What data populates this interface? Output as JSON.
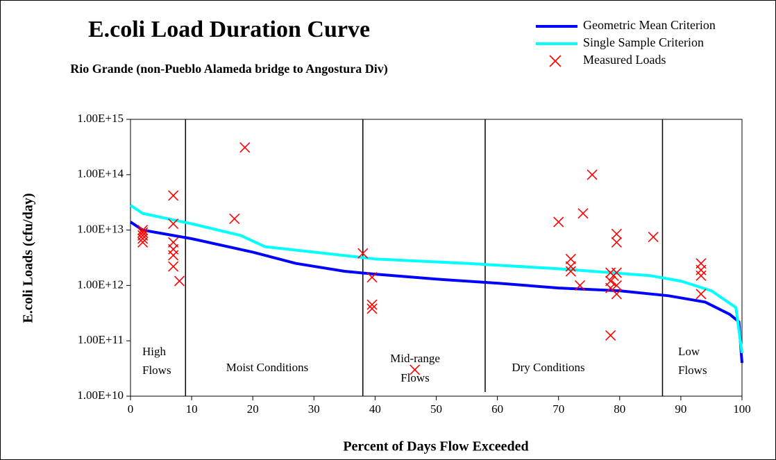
{
  "chart_data": {
    "type": "line",
    "title": "E.coli Load Duration Curve",
    "subtitle": "Rio Grande (non-Pueblo Alameda bridge to Angostura Div)",
    "x_label": "Percent of Days Flow Exceeded",
    "y_label": "E.coli Loads (cfu/day)",
    "log_y": true,
    "xlim": [
      0,
      100
    ],
    "xticks": [
      0,
      10,
      20,
      30,
      40,
      50,
      60,
      70,
      80,
      90,
      100
    ],
    "ylim": [
      10000000000.0,
      1000000000000000.0
    ],
    "yticks": [
      {
        "value": 10000000000.0,
        "label": "1.00E+10"
      },
      {
        "value": 100000000000.0,
        "label": "1.00E+11"
      },
      {
        "value": 1000000000000.0,
        "label": "1.00E+12"
      },
      {
        "value": 10000000000000.0,
        "label": "1.00E+13"
      },
      {
        "value": 100000000000000.0,
        "label": "1.00E+14"
      },
      {
        "value": 1000000000000000.0,
        "label": "1.00E+15"
      }
    ],
    "dividers": [
      9,
      38,
      58,
      87
    ],
    "regions": [
      [
        "High",
        "Flows"
      ],
      [
        "Moist Conditions"
      ],
      [
        "Mid-range",
        "Flows"
      ],
      [
        "Dry Conditions"
      ],
      [
        "Low",
        "Flows"
      ]
    ],
    "series": [
      {
        "name": "Geometric Mean Criterion",
        "color": "#0000ff",
        "type": "line",
        "x": [
          0,
          2,
          10,
          20,
          27,
          35,
          40,
          50,
          60,
          70,
          80,
          88,
          94,
          98,
          99.5,
          100
        ],
        "values": [
          14000000000000.0,
          10000000000000.0,
          7000000000000.0,
          4000000000000.0,
          2500000000000.0,
          1800000000000.0,
          1600000000000.0,
          1300000000000.0,
          1100000000000.0,
          900000000000.0,
          800000000000.0,
          650000000000.0,
          500000000000.0,
          300000000000.0,
          220000000000.0,
          40000000000.0
        ]
      },
      {
        "name": "Single Sample Criterion",
        "color": "#00ffff",
        "type": "line",
        "x": [
          0,
          2,
          10,
          18,
          22,
          30,
          40,
          55,
          70,
          85,
          90,
          95,
          99,
          100
        ],
        "values": [
          28000000000000.0,
          20000000000000.0,
          13000000000000.0,
          8000000000000.0,
          5000000000000.0,
          4000000000000.0,
          3000000000000.0,
          2500000000000.0,
          2000000000000.0,
          1500000000000.0,
          1200000000000.0,
          800000000000.0,
          400000000000.0,
          60000000000.0
        ]
      },
      {
        "name": "Measured Loads",
        "color": "#ff0000",
        "type": "scatter",
        "x": [
          2,
          2,
          2,
          2,
          2,
          7,
          7,
          7,
          7,
          7,
          7,
          8,
          17,
          18.7,
          38,
          39.5,
          39.5,
          39.5,
          46.5,
          70,
          72,
          72,
          72,
          73.5,
          74,
          75.5,
          78.5,
          78.5,
          78.5,
          78.5,
          79,
          79.5,
          79.5,
          79.5,
          79.5,
          79.5,
          85.5,
          93.3,
          93.3,
          93.3,
          93.3
        ],
        "values": [
          10000000000000.0,
          9000000000000.0,
          8000000000000.0,
          7000000000000.0,
          6000000000000.0,
          42000000000000.0,
          13000000000000.0,
          6000000000000.0,
          4500000000000.0,
          3500000000000.0,
          2200000000000.0,
          1200000000000.0,
          16000000000000.0,
          310000000000000.0,
          3800000000000.0,
          1400000000000.0,
          450000000000.0,
          380000000000.0,
          30000000000.0,
          14000000000000.0,
          3000000000000.0,
          2200000000000.0,
          1800000000000.0,
          1000000000000.0,
          20000000000000.0,
          100000000000000.0,
          1700000000000.0,
          1200000000000.0,
          900000000000.0,
          125000000000.0,
          1500000000000.0,
          8500000000000.0,
          6000000000000.0,
          1700000000000.0,
          1000000000000.0,
          700000000000.0,
          7500000000000.0,
          2500000000000.0,
          1900000000000.0,
          1500000000000.0,
          700000000000.0
        ]
      }
    ]
  }
}
